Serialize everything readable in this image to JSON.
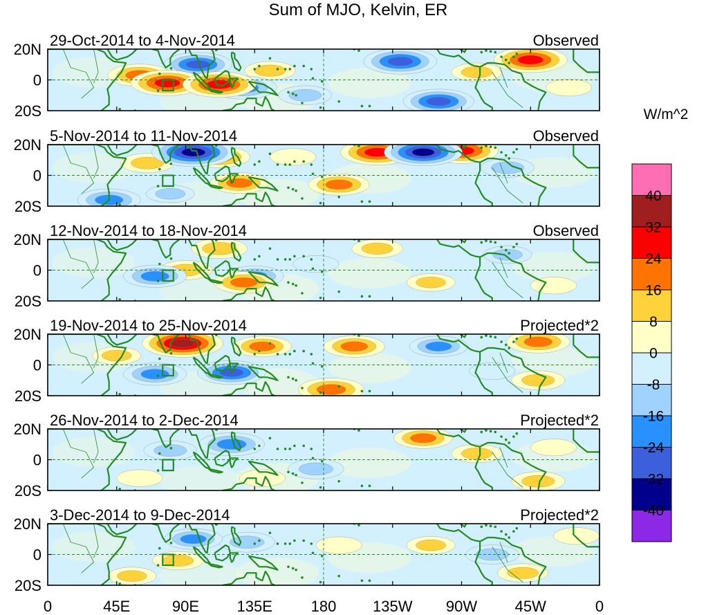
{
  "title": "Sum of MJO, Kelvin, ER",
  "colorbar": {
    "units": "W/m^2",
    "labels": [
      "40",
      "32",
      "24",
      "16",
      "8",
      "0",
      "-8",
      "-16",
      "-24",
      "-32",
      "-40"
    ],
    "colors": [
      "#ff6eb4",
      "#a01e1e",
      "#ff0000",
      "#ff7300",
      "#ffd23c",
      "#ffffc8",
      "#d2f0ff",
      "#a0d2ff",
      "#2891ff",
      "#3c60dc",
      "#00008c",
      "#8c28e6"
    ]
  },
  "lat_labels": [
    "20N",
    "0",
    "20S"
  ],
  "lon_labels": [
    "0",
    "45E",
    "90E",
    "135E",
    "180",
    "135W",
    "90W",
    "45W",
    "0"
  ],
  "land_color": "#228b22",
  "panels": [
    {
      "date_range": "29-Oct-2014 to 4-Nov-2014",
      "kind": "Observed",
      "anomalies": [
        {
          "lon": 60,
          "lat": 3,
          "value": 22
        },
        {
          "lon": 78,
          "lat": -2,
          "value": 30
        },
        {
          "lon": 112,
          "lat": -3,
          "value": 30
        },
        {
          "lon": 98,
          "lat": 10,
          "value": -26
        },
        {
          "lon": 128,
          "lat": -5,
          "value": -24
        },
        {
          "lon": 168,
          "lat": -10,
          "value": -14
        },
        {
          "lon": 145,
          "lat": 6,
          "value": 12
        },
        {
          "lon": 230,
          "lat": 12,
          "value": -30
        },
        {
          "lon": 255,
          "lat": -14,
          "value": -28
        },
        {
          "lon": 315,
          "lat": 13,
          "value": 30
        },
        {
          "lon": 280,
          "lat": 5,
          "value": 12
        },
        {
          "lon": 340,
          "lat": -5,
          "value": 8
        }
      ]
    },
    {
      "date_range": "5-Nov-2014 to 11-Nov-2014",
      "kind": "Observed",
      "anomalies": [
        {
          "lon": 95,
          "lat": 15,
          "value": -38
        },
        {
          "lon": 112,
          "lat": 12,
          "value": 20
        },
        {
          "lon": 65,
          "lat": 8,
          "value": 14
        },
        {
          "lon": 125,
          "lat": -5,
          "value": 18
        },
        {
          "lon": 190,
          "lat": -6,
          "value": 20
        },
        {
          "lon": 215,
          "lat": 15,
          "value": 30
        },
        {
          "lon": 245,
          "lat": 15,
          "value": -34
        },
        {
          "lon": 270,
          "lat": 16,
          "value": 30
        },
        {
          "lon": 300,
          "lat": 5,
          "value": -14
        },
        {
          "lon": 40,
          "lat": -16,
          "value": -22
        },
        {
          "lon": 160,
          "lat": 12,
          "value": 8
        },
        {
          "lon": 80,
          "lat": -12,
          "value": -10
        }
      ]
    },
    {
      "date_range": "12-Nov-2014 to 18-Nov-2014",
      "kind": "Observed",
      "anomalies": [
        {
          "lon": 70,
          "lat": -4,
          "value": -22
        },
        {
          "lon": 112,
          "lat": 14,
          "value": 16
        },
        {
          "lon": 135,
          "lat": -4,
          "value": -18
        },
        {
          "lon": 128,
          "lat": -8,
          "value": 20
        },
        {
          "lon": 215,
          "lat": 14,
          "value": 12
        },
        {
          "lon": 250,
          "lat": -8,
          "value": 10
        },
        {
          "lon": 300,
          "lat": 10,
          "value": -10
        },
        {
          "lon": 330,
          "lat": -10,
          "value": 8
        },
        {
          "lon": 90,
          "lat": 0,
          "value": 14
        },
        {
          "lon": 175,
          "lat": 4,
          "value": -8
        }
      ]
    },
    {
      "date_range": "19-Nov-2014 to 25-Nov-2014",
      "kind": "Projected*2",
      "anomalies": [
        {
          "lon": 88,
          "lat": 14,
          "value": 36
        },
        {
          "lon": 140,
          "lat": 12,
          "value": 18
        },
        {
          "lon": 200,
          "lat": 12,
          "value": 20
        },
        {
          "lon": 120,
          "lat": -5,
          "value": -26
        },
        {
          "lon": 185,
          "lat": -16,
          "value": 24
        },
        {
          "lon": 70,
          "lat": -6,
          "value": -22
        },
        {
          "lon": 255,
          "lat": 12,
          "value": -18
        },
        {
          "lon": 320,
          "lat": 15,
          "value": 22
        },
        {
          "lon": 320,
          "lat": -10,
          "value": 14
        },
        {
          "lon": 290,
          "lat": -4,
          "value": -8
        },
        {
          "lon": 45,
          "lat": 6,
          "value": 10
        }
      ]
    },
    {
      "date_range": "26-Nov-2014 to 2-Dec-2014",
      "kind": "Projected*2",
      "anomalies": [
        {
          "lon": 120,
          "lat": 10,
          "value": -24
        },
        {
          "lon": 80,
          "lat": 6,
          "value": -14
        },
        {
          "lon": 175,
          "lat": -6,
          "value": -16
        },
        {
          "lon": 245,
          "lat": 14,
          "value": 18
        },
        {
          "lon": 280,
          "lat": 4,
          "value": 12
        },
        {
          "lon": 320,
          "lat": -14,
          "value": 14
        },
        {
          "lon": 60,
          "lat": -12,
          "value": 8
        },
        {
          "lon": 140,
          "lat": -12,
          "value": 8
        },
        {
          "lon": 330,
          "lat": 8,
          "value": 8
        }
      ]
    },
    {
      "date_range": "3-Dec-2014 to 9-Dec-2014",
      "kind": "Projected*2",
      "anomalies": [
        {
          "lon": 95,
          "lat": 10,
          "value": -18
        },
        {
          "lon": 130,
          "lat": 8,
          "value": -16
        },
        {
          "lon": 85,
          "lat": -4,
          "value": 12
        },
        {
          "lon": 250,
          "lat": 6,
          "value": 10
        },
        {
          "lon": 290,
          "lat": 0,
          "value": -14
        },
        {
          "lon": 310,
          "lat": -12,
          "value": 12
        },
        {
          "lon": 190,
          "lat": 6,
          "value": 8
        },
        {
          "lon": 55,
          "lat": -14,
          "value": 10
        },
        {
          "lon": 345,
          "lat": 12,
          "value": 8
        }
      ]
    }
  ]
}
